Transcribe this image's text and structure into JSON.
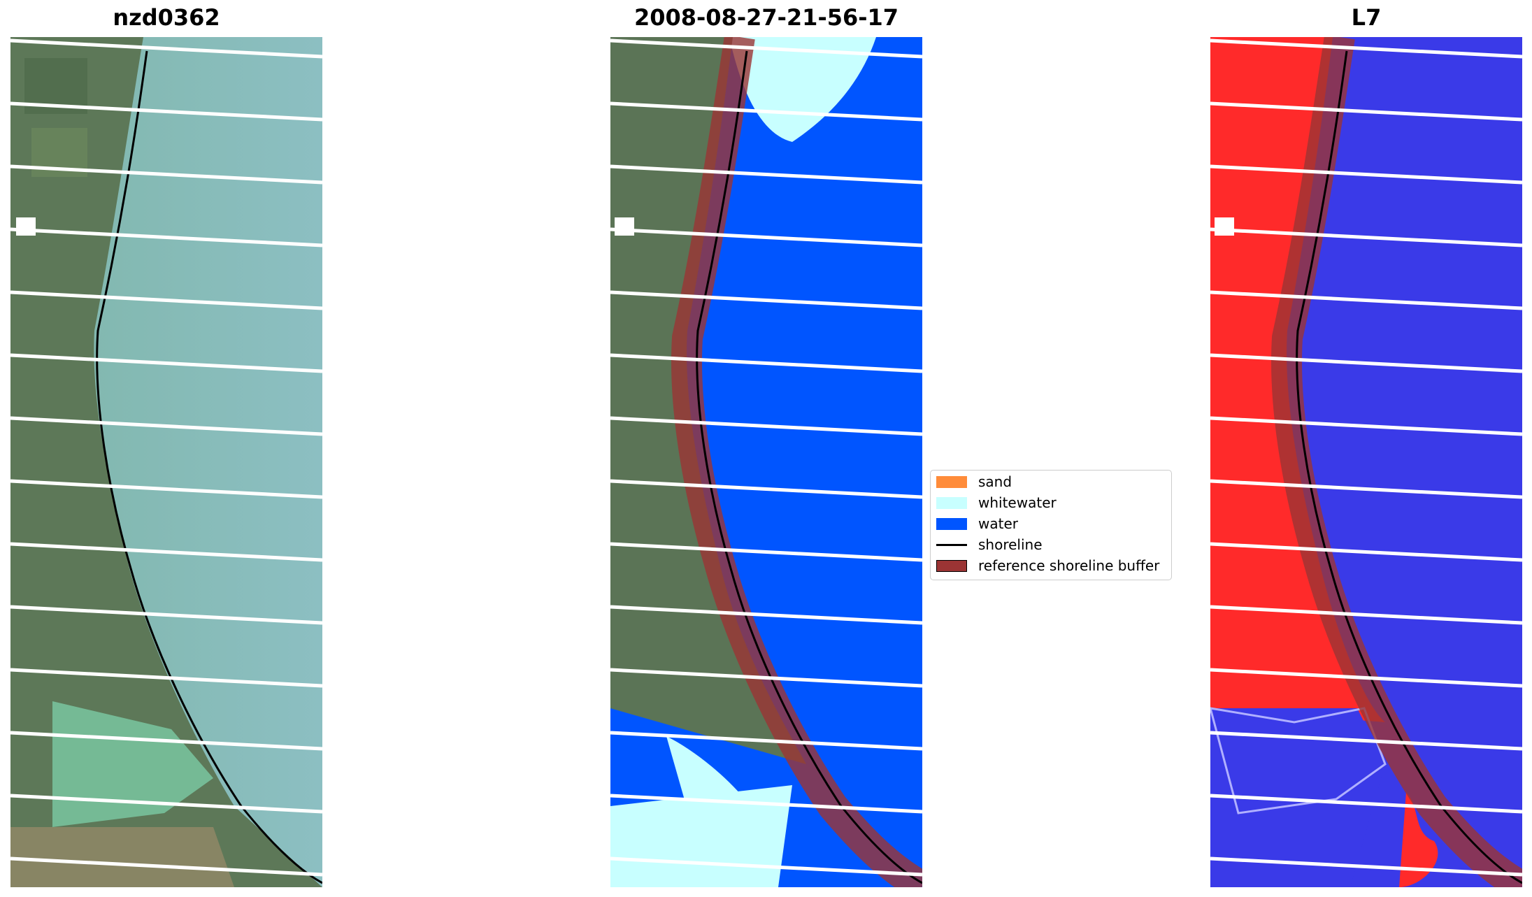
{
  "panels": [
    {
      "title": "nzd0362"
    },
    {
      "title": "2008-08-27-21-56-17"
    },
    {
      "title": "L7"
    }
  ],
  "legend": {
    "items": [
      {
        "label": "sand",
        "color": "#ff8c3a"
      },
      {
        "label": "whitewater",
        "color": "#c8ffff"
      },
      {
        "label": "water",
        "color": "#0055ff"
      },
      {
        "label": "shoreline",
        "color": "#000000"
      },
      {
        "label": "reference shoreline buffer",
        "color": "#9b3434"
      }
    ]
  },
  "colors": {
    "land_rgb": "#5f7a5c",
    "sea_rgb": "#7aaea6",
    "water_class": "#0055ff",
    "whitewater_class": "#c8ffff",
    "buffer": "#9b3434",
    "index_land": "#ff2a2a",
    "index_water": "#3a3ae8",
    "scanline_gap": "#ffffff"
  }
}
